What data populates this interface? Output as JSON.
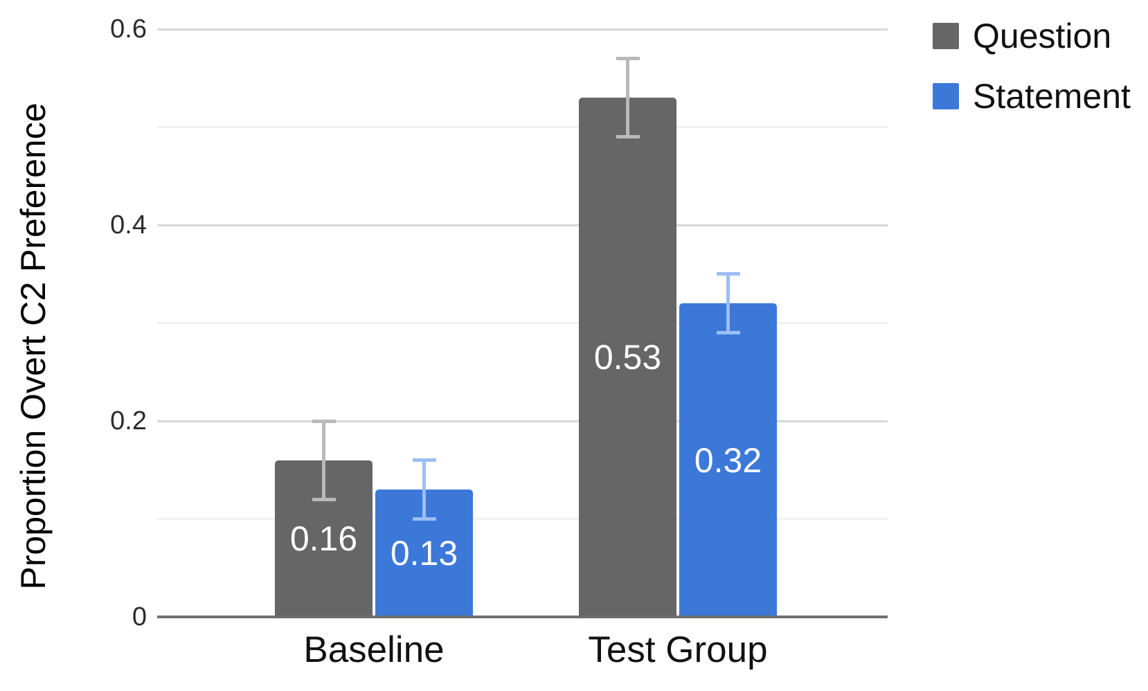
{
  "chart_data": {
    "type": "bar",
    "title": "",
    "xlabel": "",
    "ylabel": "Proportion Overt C2 Preference",
    "categories": [
      "Baseline",
      "Test Group"
    ],
    "series": [
      {
        "name": "Question",
        "color": "#666666",
        "error_bar_color": "#B9B9B9",
        "values": [
          0.16,
          0.53
        ],
        "errors": [
          0.04,
          0.04
        ],
        "data_labels": [
          "0.16",
          "0.53"
        ]
      },
      {
        "name": "Statement",
        "color": "#3C78D8",
        "error_bar_color": "#9DBDF4",
        "values": [
          0.13,
          0.32
        ],
        "errors": [
          0.03,
          0.03
        ],
        "data_labels": [
          "0.13",
          "0.32"
        ]
      }
    ],
    "ylim": [
      0,
      0.6
    ],
    "yticks": [
      {
        "value": 0,
        "label": "0"
      },
      {
        "value": 0.2,
        "label": "0.2"
      },
      {
        "value": 0.4,
        "label": "0.4"
      },
      {
        "value": 0.6,
        "label": "0.6"
      }
    ],
    "minor_gridlines": [
      0.1,
      0.3,
      0.5
    ],
    "grid": true,
    "legend_position": "top-right",
    "data_label_position": "inside-center",
    "colors": {
      "background": "#FFFFFF",
      "axis_line": "#6E6E6E",
      "major_gridline": "#D8D8D8",
      "minor_gridline": "#F1F1F1",
      "tick_label": "#2B2B2B",
      "category_label": "#111111",
      "legend_label": "#111111",
      "data_label": "#FFFFFF",
      "axis_title": "#000000"
    }
  }
}
